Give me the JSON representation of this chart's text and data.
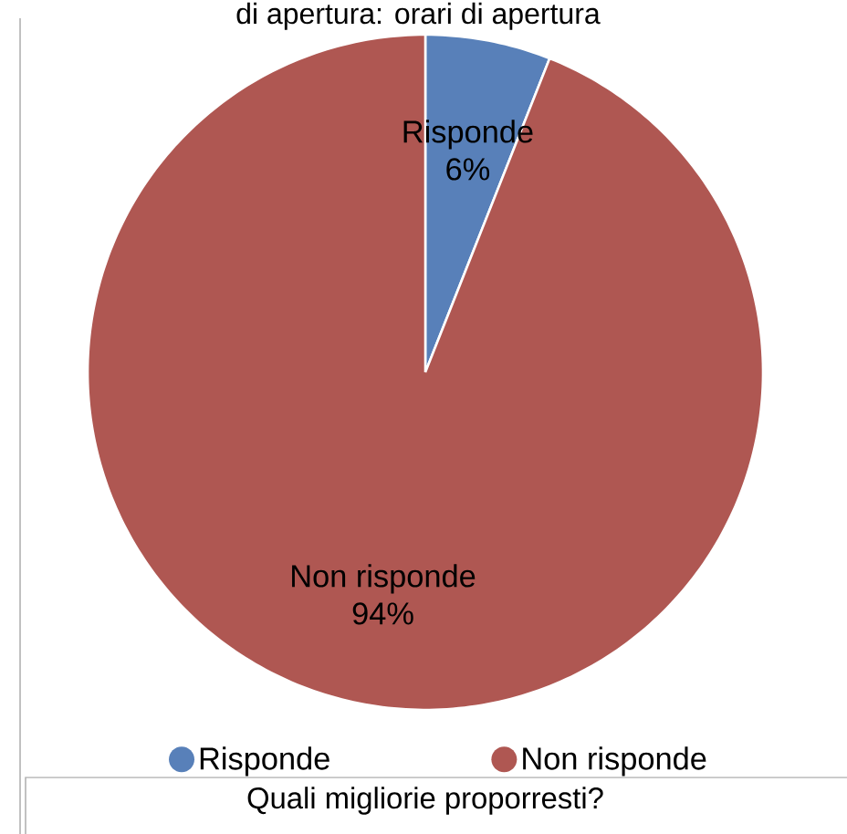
{
  "chart_data": {
    "type": "pie",
    "title": "di apertura: orari di apertura",
    "categories": [
      "Risponde",
      "Non risponde"
    ],
    "values": [
      6,
      94
    ],
    "value_labels": [
      "6%",
      "94%"
    ],
    "colors": [
      "#5880b9",
      "#af5752"
    ],
    "legend": "bottom",
    "annotations": [
      "Quali migliorie proporresti?"
    ]
  }
}
